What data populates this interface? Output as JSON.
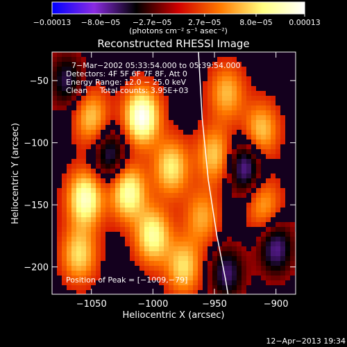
{
  "chart_data": {
    "type": "heatmap",
    "title": "Reconstructed RHESSI Image",
    "xlabel": "Heliocentric X (arcsec)",
    "ylabel": "Heliocentric Y (arcsec)",
    "xlim": [
      -1082,
      -884
    ],
    "ylim": [
      -222,
      -27
    ],
    "x_ticks": [
      -1050,
      -1000,
      -950,
      -900
    ],
    "x_tick_labels": [
      "−1050",
      "−1000",
      "−950",
      "−900"
    ],
    "y_ticks": [
      -50,
      -100,
      -150,
      -200
    ],
    "y_tick_labels": [
      "−50",
      "−100",
      "−150",
      "−200"
    ],
    "colorbar": {
      "min": -0.00013,
      "max": 0.00013,
      "tick_values": [
        -0.00013,
        -8e-05,
        -2.7e-05,
        2.7e-05,
        8e-05,
        0.00013
      ],
      "tick_labels": [
        "−0.00013",
        "−8.0e−05",
        "−2.7e−05",
        "2.7e−05",
        "8.0e−05",
        "0.00013"
      ],
      "unit_label": "(photons cm⁻² s⁻¹ asec⁻²)",
      "stops": [
        "#0000ff",
        "#8a2be2",
        "#000000",
        "#d00000",
        "#ff7a00",
        "#ffff80",
        "#ffffff"
      ]
    },
    "annotations": {
      "time_range": "7−Mar−2002 05:33:54.000 to 05:39:54.000",
      "detectors": "Detectors: 4F 5F 6F 7F 8F, Att 0",
      "energy": "Energy Range: 12.0 − 25.0 keV",
      "clean": "Clean     Total counts: 3.95E+03",
      "peak": "Position of Peak = [−1009,−79]"
    },
    "limb_curve": [
      [
        -963,
        -27
      ],
      [
        -960,
        -80
      ],
      [
        -955,
        -130
      ],
      [
        -948,
        -175
      ],
      [
        -941,
        -210
      ],
      [
        -939,
        -222
      ]
    ],
    "sources": [
      {
        "x": -1009,
        "y": -79,
        "amp": 1.0
      },
      {
        "x": -1050,
        "y": -80,
        "amp": 0.55
      },
      {
        "x": -1055,
        "y": -145,
        "amp": 0.85
      },
      {
        "x": -1020,
        "y": -140,
        "amp": 0.8
      },
      {
        "x": -1000,
        "y": -175,
        "amp": 0.75
      },
      {
        "x": -975,
        "y": -200,
        "amp": 0.6
      },
      {
        "x": -1060,
        "y": -190,
        "amp": 0.6
      },
      {
        "x": -985,
        "y": -120,
        "amp": 0.65
      },
      {
        "x": -950,
        "y": -110,
        "amp": 0.55
      },
      {
        "x": -940,
        "y": -60,
        "amp": 0.5
      },
      {
        "x": -912,
        "y": -90,
        "amp": 0.55
      },
      {
        "x": -910,
        "y": -150,
        "amp": 0.45
      },
      {
        "x": -960,
        "y": -160,
        "amp": 0.45
      },
      {
        "x": -1035,
        "y": -110,
        "amp": -0.5
      },
      {
        "x": -925,
        "y": -120,
        "amp": -0.6
      },
      {
        "x": -900,
        "y": -185,
        "amp": -0.55
      },
      {
        "x": -940,
        "y": -205,
        "amp": -0.5
      },
      {
        "x": -1070,
        "y": -50,
        "amp": -0.45
      }
    ]
  },
  "footer": {
    "date": "12−Apr−2013 19:34"
  }
}
